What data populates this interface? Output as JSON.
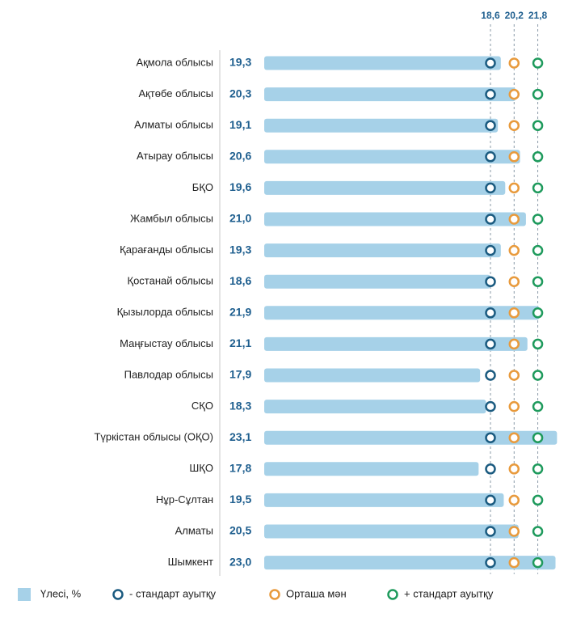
{
  "chart_data": {
    "type": "bar",
    "orientation": "horizontal",
    "categories": [
      "Ақмола облысы",
      "Ақтөбе облысы",
      "Алматы облысы",
      "Атырау облысы",
      "БҚО",
      "Жамбыл облысы",
      "Қарағанды облысы",
      "Қостанай облысы",
      "Қызылорда облысы",
      "Маңғыстау облысы",
      "Павлодар облысы",
      "СҚО",
      "Түркістан облысы (ОҚО)",
      "ШҚО",
      "Нұр-Сұлтан",
      "Алматы",
      "Шымкент"
    ],
    "series": [
      {
        "name": "Үлесі, %",
        "color": "#a6d1e8",
        "values": [
          19.3,
          20.3,
          19.1,
          20.6,
          19.6,
          21.0,
          19.3,
          18.6,
          21.9,
          21.1,
          17.9,
          18.3,
          23.1,
          17.8,
          19.5,
          20.5,
          23.0
        ],
        "value_labels": [
          "19,3",
          "20,3",
          "19,1",
          "20,6",
          "19,6",
          "21,0",
          "19,3",
          "18,6",
          "21,9",
          "21,1",
          "17,9",
          "18,3",
          "23,1",
          "17,8",
          "19,5",
          "20,5",
          "23,0"
        ]
      }
    ],
    "reference_lines": [
      {
        "name": "- стандарт ауытқу",
        "value": 18.6,
        "label": "18,6",
        "color": "#1b5b80"
      },
      {
        "name": "Орташа мән",
        "value": 20.2,
        "label": "20,2",
        "color": "#e89a3c"
      },
      {
        "name": "+ стандарт ауытқу",
        "value": 21.8,
        "label": "21,8",
        "color": "#1e9a5c"
      }
    ],
    "xlim": [
      3.3,
      23.3
    ]
  }
}
